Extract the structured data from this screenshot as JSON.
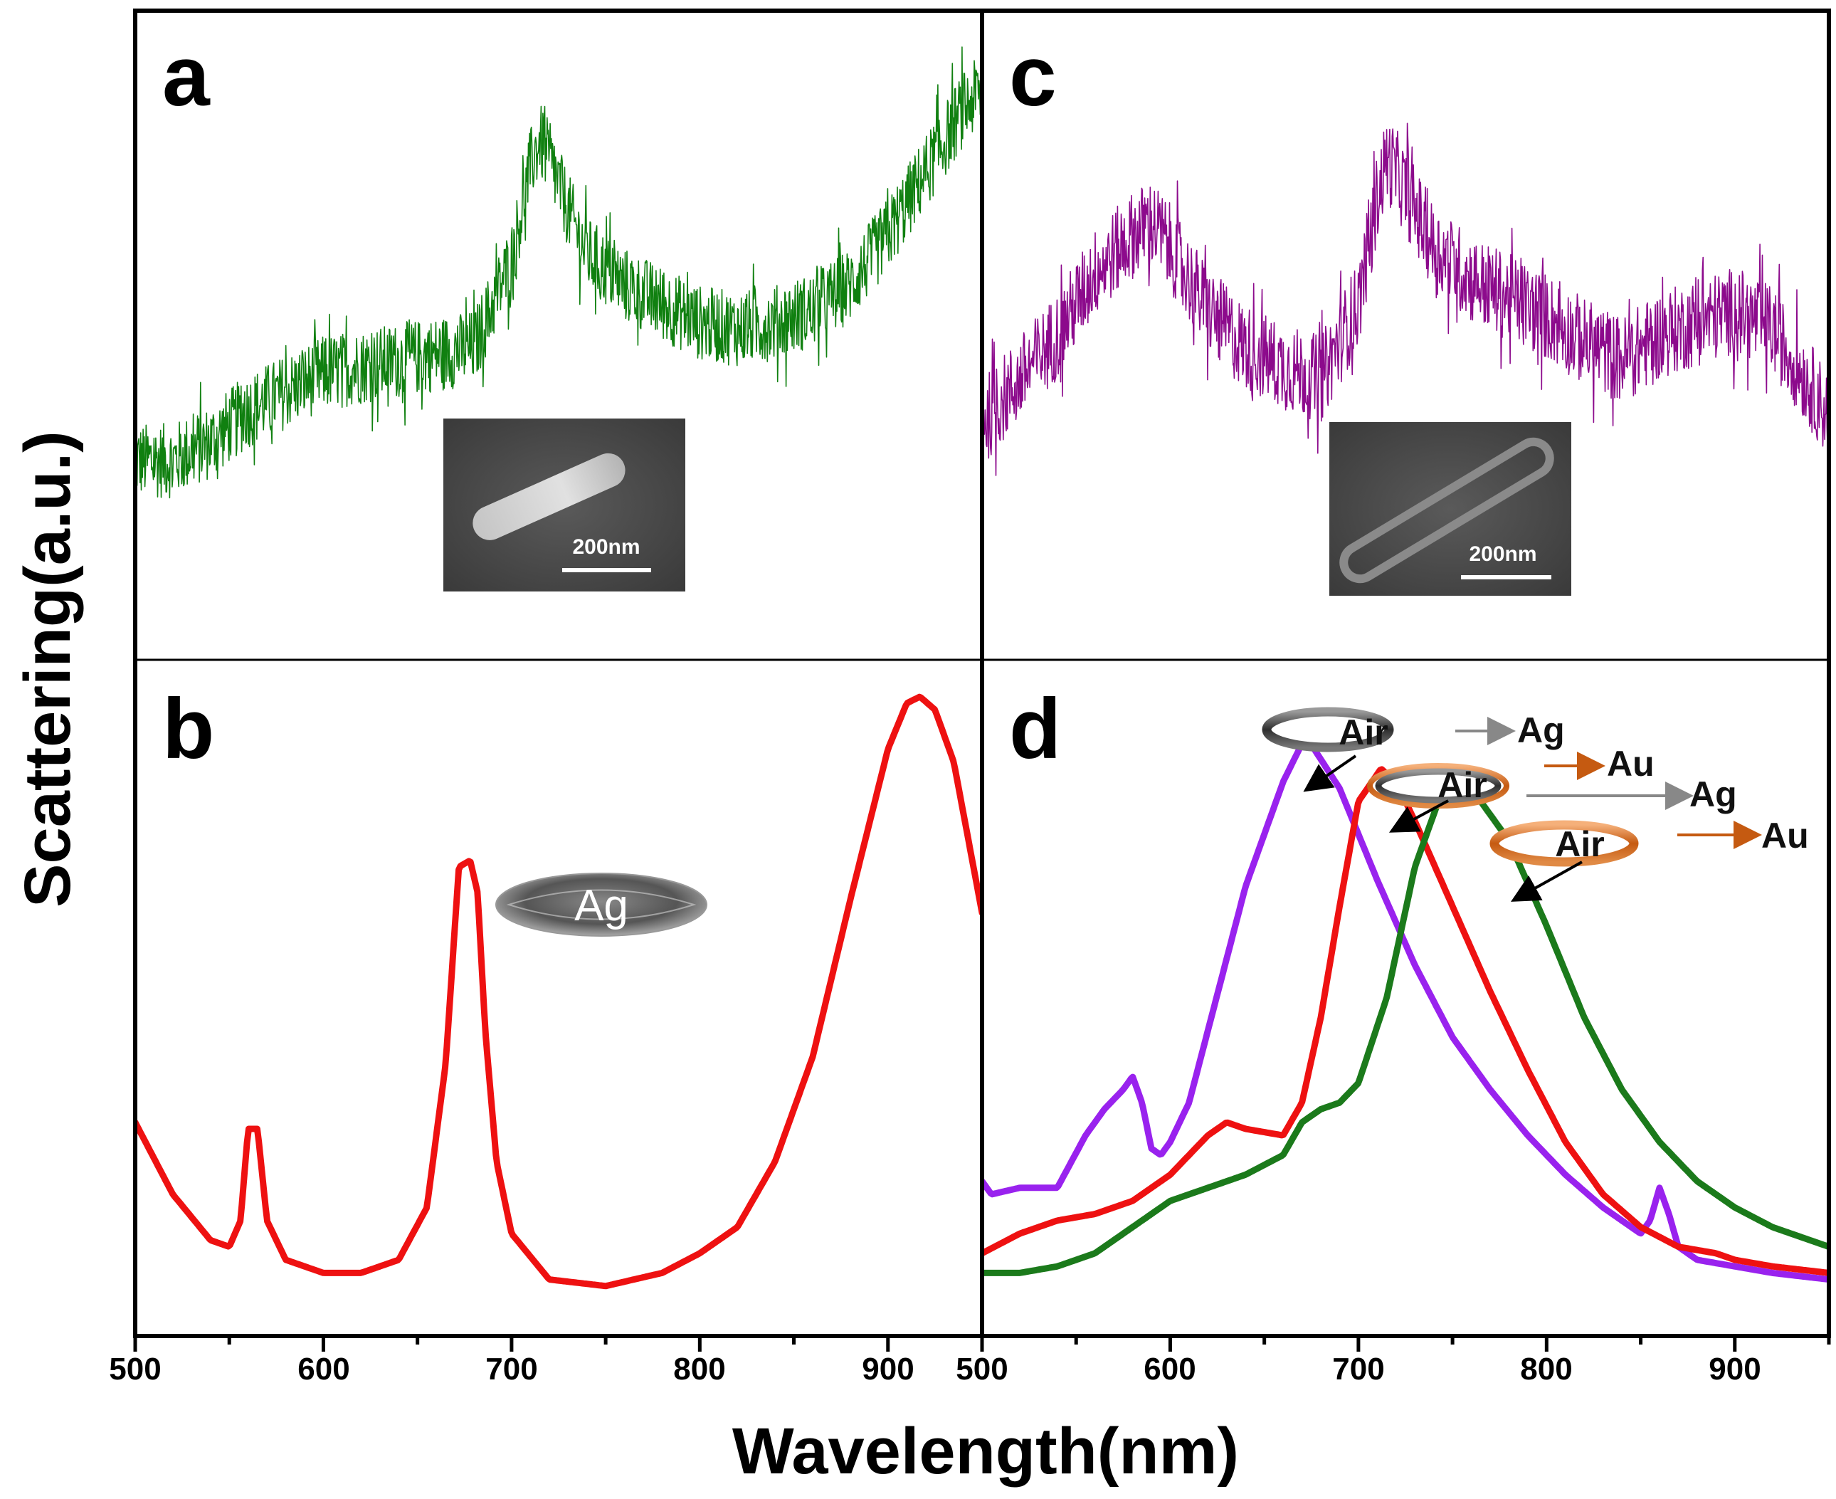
{
  "axis_titles": {
    "x": "Wavelength(nm)",
    "y": "Scattering(a.u.)"
  },
  "panels": {
    "a": {
      "letter": "a",
      "scale_bar": "200nm"
    },
    "b": {
      "letter": "b",
      "model_label": "Ag"
    },
    "c": {
      "letter": "c",
      "scale_bar": "200nm"
    },
    "d": {
      "letter": "d",
      "models": [
        {
          "core": "Air",
          "shells": [
            "Ag"
          ]
        },
        {
          "core": "Air",
          "shells": [
            "Au",
            "Ag"
          ]
        },
        {
          "core": "Air",
          "shells": [
            "Au"
          ]
        }
      ]
    }
  },
  "x_ticks_left": [
    "500",
    "600",
    "700",
    "800",
    "900"
  ],
  "x_ticks_right": [
    "500",
    "600",
    "700",
    "800",
    "900"
  ],
  "colors": {
    "green": "#108010",
    "purple": "#8c0a8c",
    "red": "#ee1111",
    "violet": "#9922ee",
    "dkgreen": "#1b7a1b",
    "orange": "#c55a11",
    "gray": "#888888"
  },
  "chart_data": [
    {
      "panel": "a",
      "type": "line",
      "title": "",
      "xlabel": "Wavelength(nm)",
      "ylabel": "Scattering(a.u.)",
      "xlim": [
        500,
        950
      ],
      "ylim": [
        0,
        1
      ],
      "grid": false,
      "series": [
        {
          "name": "experimental scattering (green, noisy)",
          "color": "#108010",
          "x": [
            500,
            520,
            540,
            560,
            580,
            600,
            620,
            640,
            660,
            680,
            700,
            710,
            715,
            720,
            730,
            740,
            760,
            780,
            800,
            820,
            840,
            860,
            880,
            900,
            920,
            940,
            950
          ],
          "y": [
            0.3,
            0.3,
            0.33,
            0.38,
            0.41,
            0.44,
            0.45,
            0.46,
            0.47,
            0.48,
            0.62,
            0.77,
            0.81,
            0.78,
            0.7,
            0.63,
            0.58,
            0.55,
            0.52,
            0.51,
            0.52,
            0.54,
            0.58,
            0.66,
            0.76,
            0.86,
            0.89
          ],
          "noise_amplitude": 0.06
        }
      ]
    },
    {
      "panel": "b",
      "type": "line",
      "title": "",
      "xlabel": "Wavelength(nm)",
      "ylabel": "Scattering(a.u.)",
      "xlim": [
        500,
        950
      ],
      "ylim": [
        0,
        1
      ],
      "grid": false,
      "series": [
        {
          "name": "Ag simulation (red)",
          "color": "#ee1111",
          "x": [
            500,
            520,
            540,
            550,
            556,
            560,
            565,
            570,
            580,
            600,
            620,
            640,
            655,
            665,
            672,
            678,
            682,
            686,
            692,
            700,
            720,
            750,
            780,
            800,
            820,
            840,
            860,
            880,
            900,
            910,
            917,
            925,
            935,
            950
          ],
          "y": [
            0.31,
            0.2,
            0.13,
            0.12,
            0.16,
            0.3,
            0.3,
            0.16,
            0.1,
            0.08,
            0.08,
            0.1,
            0.18,
            0.4,
            0.7,
            0.71,
            0.66,
            0.45,
            0.25,
            0.14,
            0.07,
            0.06,
            0.08,
            0.11,
            0.15,
            0.25,
            0.41,
            0.65,
            0.88,
            0.95,
            0.96,
            0.94,
            0.86,
            0.63
          ]
        }
      ]
    },
    {
      "panel": "c",
      "type": "line",
      "title": "",
      "xlabel": "Wavelength(nm)",
      "ylabel": "Scattering(a.u.)",
      "xlim": [
        500,
        950
      ],
      "ylim": [
        0,
        1
      ],
      "grid": false,
      "series": [
        {
          "name": "experimental scattering (purple, noisy)",
          "color": "#8c0a8c",
          "x": [
            500,
            520,
            540,
            560,
            580,
            590,
            600,
            620,
            640,
            660,
            680,
            700,
            710,
            715,
            720,
            730,
            740,
            760,
            780,
            800,
            820,
            840,
            860,
            880,
            900,
            920,
            940,
            950
          ],
          "y": [
            0.36,
            0.43,
            0.5,
            0.6,
            0.66,
            0.68,
            0.64,
            0.54,
            0.48,
            0.45,
            0.43,
            0.55,
            0.72,
            0.78,
            0.76,
            0.7,
            0.64,
            0.59,
            0.56,
            0.53,
            0.49,
            0.46,
            0.5,
            0.52,
            0.54,
            0.51,
            0.42,
            0.37
          ],
          "noise_amplitude": 0.07
        }
      ]
    },
    {
      "panel": "d",
      "type": "line",
      "title": "",
      "xlabel": "Wavelength(nm)",
      "ylabel": "Scattering(a.u.)",
      "xlim": [
        500,
        950
      ],
      "ylim": [
        0,
        1
      ],
      "grid": false,
      "series": [
        {
          "name": "Air/Ag (violet)",
          "color": "#9922ee",
          "x": [
            500,
            505,
            520,
            540,
            555,
            565,
            575,
            580,
            585,
            590,
            595,
            600,
            610,
            620,
            640,
            660,
            672,
            690,
            710,
            730,
            750,
            770,
            790,
            810,
            830,
            850,
            855,
            860,
            865,
            870,
            880,
            900,
            920,
            950
          ],
          "y": [
            0.22,
            0.2,
            0.21,
            0.21,
            0.29,
            0.33,
            0.36,
            0.38,
            0.34,
            0.27,
            0.26,
            0.28,
            0.34,
            0.45,
            0.67,
            0.83,
            0.9,
            0.82,
            0.68,
            0.55,
            0.44,
            0.36,
            0.29,
            0.23,
            0.18,
            0.14,
            0.16,
            0.21,
            0.17,
            0.12,
            0.1,
            0.09,
            0.08,
            0.07
          ]
        },
        {
          "name": "Air/Au/Ag (red)",
          "color": "#ee1111",
          "x": [
            500,
            520,
            540,
            560,
            580,
            600,
            620,
            630,
            640,
            660,
            670,
            680,
            690,
            700,
            712,
            720,
            730,
            750,
            770,
            790,
            810,
            830,
            850,
            870,
            890,
            900,
            920,
            950
          ],
          "y": [
            0.11,
            0.14,
            0.16,
            0.17,
            0.19,
            0.23,
            0.29,
            0.31,
            0.3,
            0.29,
            0.34,
            0.47,
            0.64,
            0.8,
            0.85,
            0.83,
            0.77,
            0.64,
            0.51,
            0.39,
            0.28,
            0.2,
            0.15,
            0.12,
            0.11,
            0.1,
            0.09,
            0.08
          ]
        },
        {
          "name": "Air/Au (green)",
          "color": "#1b7a1b",
          "x": [
            500,
            520,
            540,
            560,
            580,
            600,
            620,
            640,
            660,
            670,
            680,
            690,
            700,
            715,
            730,
            745,
            752,
            760,
            780,
            800,
            820,
            840,
            860,
            880,
            900,
            920,
            950
          ],
          "y": [
            0.08,
            0.08,
            0.09,
            0.11,
            0.15,
            0.19,
            0.21,
            0.23,
            0.26,
            0.31,
            0.33,
            0.34,
            0.37,
            0.5,
            0.7,
            0.82,
            0.83,
            0.82,
            0.74,
            0.61,
            0.47,
            0.36,
            0.28,
            0.22,
            0.18,
            0.15,
            0.12
          ]
        }
      ]
    }
  ]
}
